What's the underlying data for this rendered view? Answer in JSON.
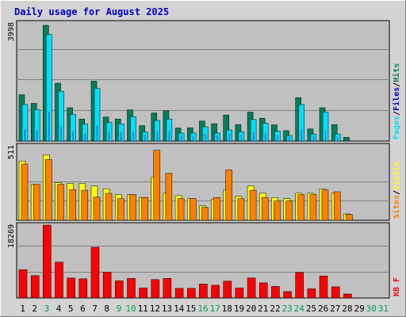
{
  "chart_data": {
    "type": "bar",
    "title": "Daily usage for August 2025",
    "categories": [
      "1",
      "2",
      "3",
      "4",
      "5",
      "6",
      "7",
      "8",
      "9",
      "10",
      "11",
      "12",
      "13",
      "14",
      "15",
      "16",
      "17",
      "18",
      "19",
      "20",
      "21",
      "22",
      "23",
      "24",
      "25",
      "26",
      "27",
      "28",
      "29",
      "30",
      "31"
    ],
    "weekend_days": [
      "3",
      "9",
      "10",
      "16",
      "17",
      "23",
      "24",
      "30",
      "31"
    ],
    "colors": {
      "hits": "#00805c",
      "files": "#00e0ff",
      "pages": "#0044cc",
      "visits": "#ffff00",
      "sites": "#ff8000",
      "kbytes": "#ff0000",
      "plot_bg": "#c0c0c0",
      "frame_bg": "#d3d3d3",
      "title": "#0000cc",
      "weekend_label": "#00a050",
      "weekday_label": "#000000"
    },
    "panels": [
      {
        "id": "hits-files-pages",
        "ymax_label": "3998",
        "ylim": [
          0,
          3998
        ],
        "legend": [
          {
            "label": "Hits",
            "color": "#00805c"
          },
          {
            "label": "Files",
            "color": "#0000cc"
          },
          {
            "label": "Pages",
            "color": "#00e0ff"
          }
        ],
        "legend_sep": "/",
        "series": [
          {
            "name": "Hits",
            "key": "hits",
            "values": [
              1600,
              1300,
              3998,
              2000,
              1150,
              760,
              2070,
              830,
              760,
              1080,
              530,
              970,
              1050,
              450,
              460,
              690,
              600,
              900,
              570,
              1000,
              790,
              560,
              360,
              1500,
              420,
              1150,
              570,
              130,
              0,
              0,
              0
            ]
          },
          {
            "name": "Files",
            "key": "files",
            "values": [
              1400,
              1220,
              3820,
              1860,
              1060,
              720,
              1950,
              780,
              730,
              980,
              450,
              850,
              900,
              410,
              420,
              630,
              410,
              520,
              460,
              880,
              750,
              480,
              330,
              1400,
              380,
              1140,
              380,
              100,
              0,
              0,
              0
            ]
          },
          {
            "name": "Pages",
            "key": "pages",
            "values": [
              400,
              370,
              1000,
              520,
              340,
              250,
              540,
              310,
              300,
              320,
              210,
              340,
              350,
              190,
              200,
              240,
              200,
              260,
              210,
              320,
              290,
              220,
              170,
              400,
              180,
              350,
              160,
              50,
              0,
              0,
              0
            ]
          }
        ]
      },
      {
        "id": "visits-sites",
        "ymax_label": "511",
        "ylim": [
          0,
          511
        ],
        "legend": [
          {
            "label": "Visits",
            "color": "#ffff00"
          },
          {
            "label": "Sites",
            "color": "#ff8000"
          }
        ],
        "legend_sep": "/",
        "series": [
          {
            "name": "Visits",
            "key": "visits",
            "values": [
              411,
              249,
              453,
              261,
              256,
              256,
              238,
              218,
              178,
              178,
              158,
              299,
              188,
              171,
              150,
              100,
              148,
              211,
              168,
              239,
              188,
              158,
              150,
              188,
              188,
              218,
              188,
              44,
              0,
              0,
              0
            ]
          },
          {
            "name": "Sites",
            "key": "sites",
            "values": [
              390,
              249,
              421,
              249,
              212,
              208,
              161,
              187,
              150,
              178,
              158,
              485,
              326,
              150,
              150,
              90,
              158,
              350,
              150,
              208,
              158,
              134,
              134,
              178,
              178,
              210,
              198,
              40,
              0,
              0,
              0
            ]
          }
        ]
      },
      {
        "id": "kbytes",
        "ymax_label": "18269",
        "ylim": [
          0,
          18269
        ],
        "legend": [
          {
            "label": "KB F",
            "color": "#ff0000"
          }
        ],
        "legend_sep": "",
        "series": [
          {
            "name": "KB F",
            "key": "kbytes",
            "values": [
              7100,
              5600,
              18269,
              9000,
              5000,
              4800,
              12700,
              6500,
              4300,
              4900,
              2500,
              4600,
              4900,
              2400,
              2400,
              3500,
              3200,
              4200,
              2500,
              5000,
              3800,
              2900,
              1600,
              6400,
              2300,
              5500,
              2800,
              1000,
              0,
              0,
              0
            ]
          }
        ]
      }
    ]
  }
}
